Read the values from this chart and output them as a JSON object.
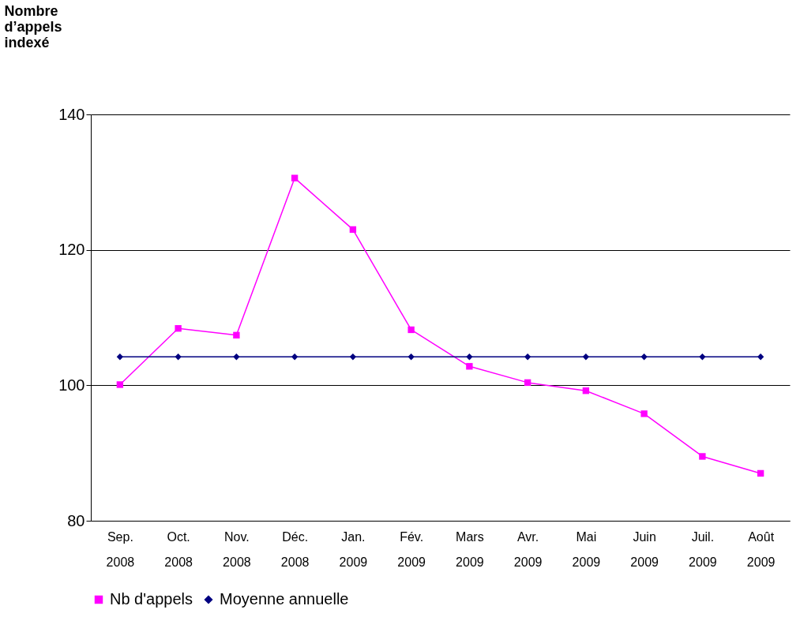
{
  "chart_data": {
    "type": "line",
    "ylabel": "Nombre d’appels indexé",
    "categories": [
      "Sep. 2008",
      "Oct. 2008",
      "Nov. 2008",
      "Déc. 2008",
      "Jan. 2009",
      "Fév. 2009",
      "Mars 2009",
      "Avr. 2009",
      "Mai 2009",
      "Juin 2009",
      "Juil. 2009",
      "Août 2009"
    ],
    "series": [
      {
        "name": "Nb d'appels",
        "color": "#ff00ff",
        "marker": "square",
        "values": [
          100.1,
          108.4,
          107.4,
          130.6,
          123.0,
          108.2,
          102.8,
          100.4,
          99.2,
          95.8,
          89.5,
          87.0
        ]
      },
      {
        "name": "Moyenne annuelle",
        "color": "#000080",
        "marker": "diamond",
        "values": [
          104.2,
          104.2,
          104.2,
          104.2,
          104.2,
          104.2,
          104.2,
          104.2,
          104.2,
          104.2,
          104.2,
          104.2
        ]
      }
    ],
    "ylim": [
      80,
      140
    ],
    "yticks": [
      80,
      100,
      120,
      140
    ],
    "grid": "y",
    "legend": "bottom"
  }
}
